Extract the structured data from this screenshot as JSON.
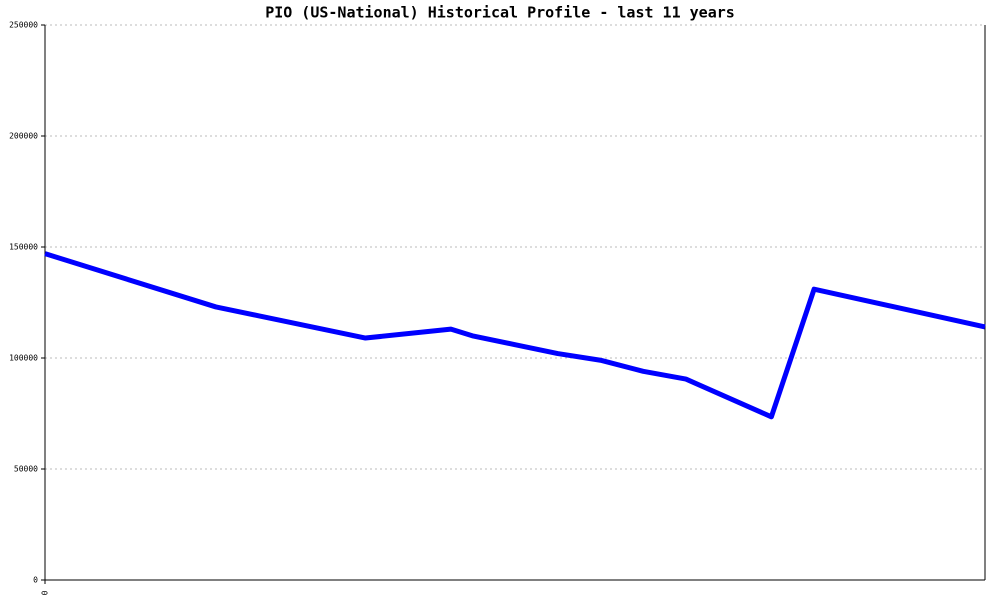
{
  "chart_data": {
    "type": "line",
    "title": "PIO (US-National) Historical Profile - last 11 years",
    "x": [
      0,
      24,
      30,
      45,
      57,
      60,
      66,
      72,
      78,
      84,
      90,
      102,
      108,
      132
    ],
    "values": [
      147000,
      123000,
      119000,
      109000,
      113000,
      110000,
      106000,
      102000,
      99000,
      94000,
      90500,
      73500,
      131000,
      114000
    ],
    "color": "#0000ff",
    "xlim": [
      0,
      132
    ],
    "xticks": [
      0
    ],
    "ylim": [
      0,
      250000
    ],
    "yticks": [
      0,
      50000,
      100000,
      150000,
      200000,
      250000
    ],
    "grid": true
  }
}
